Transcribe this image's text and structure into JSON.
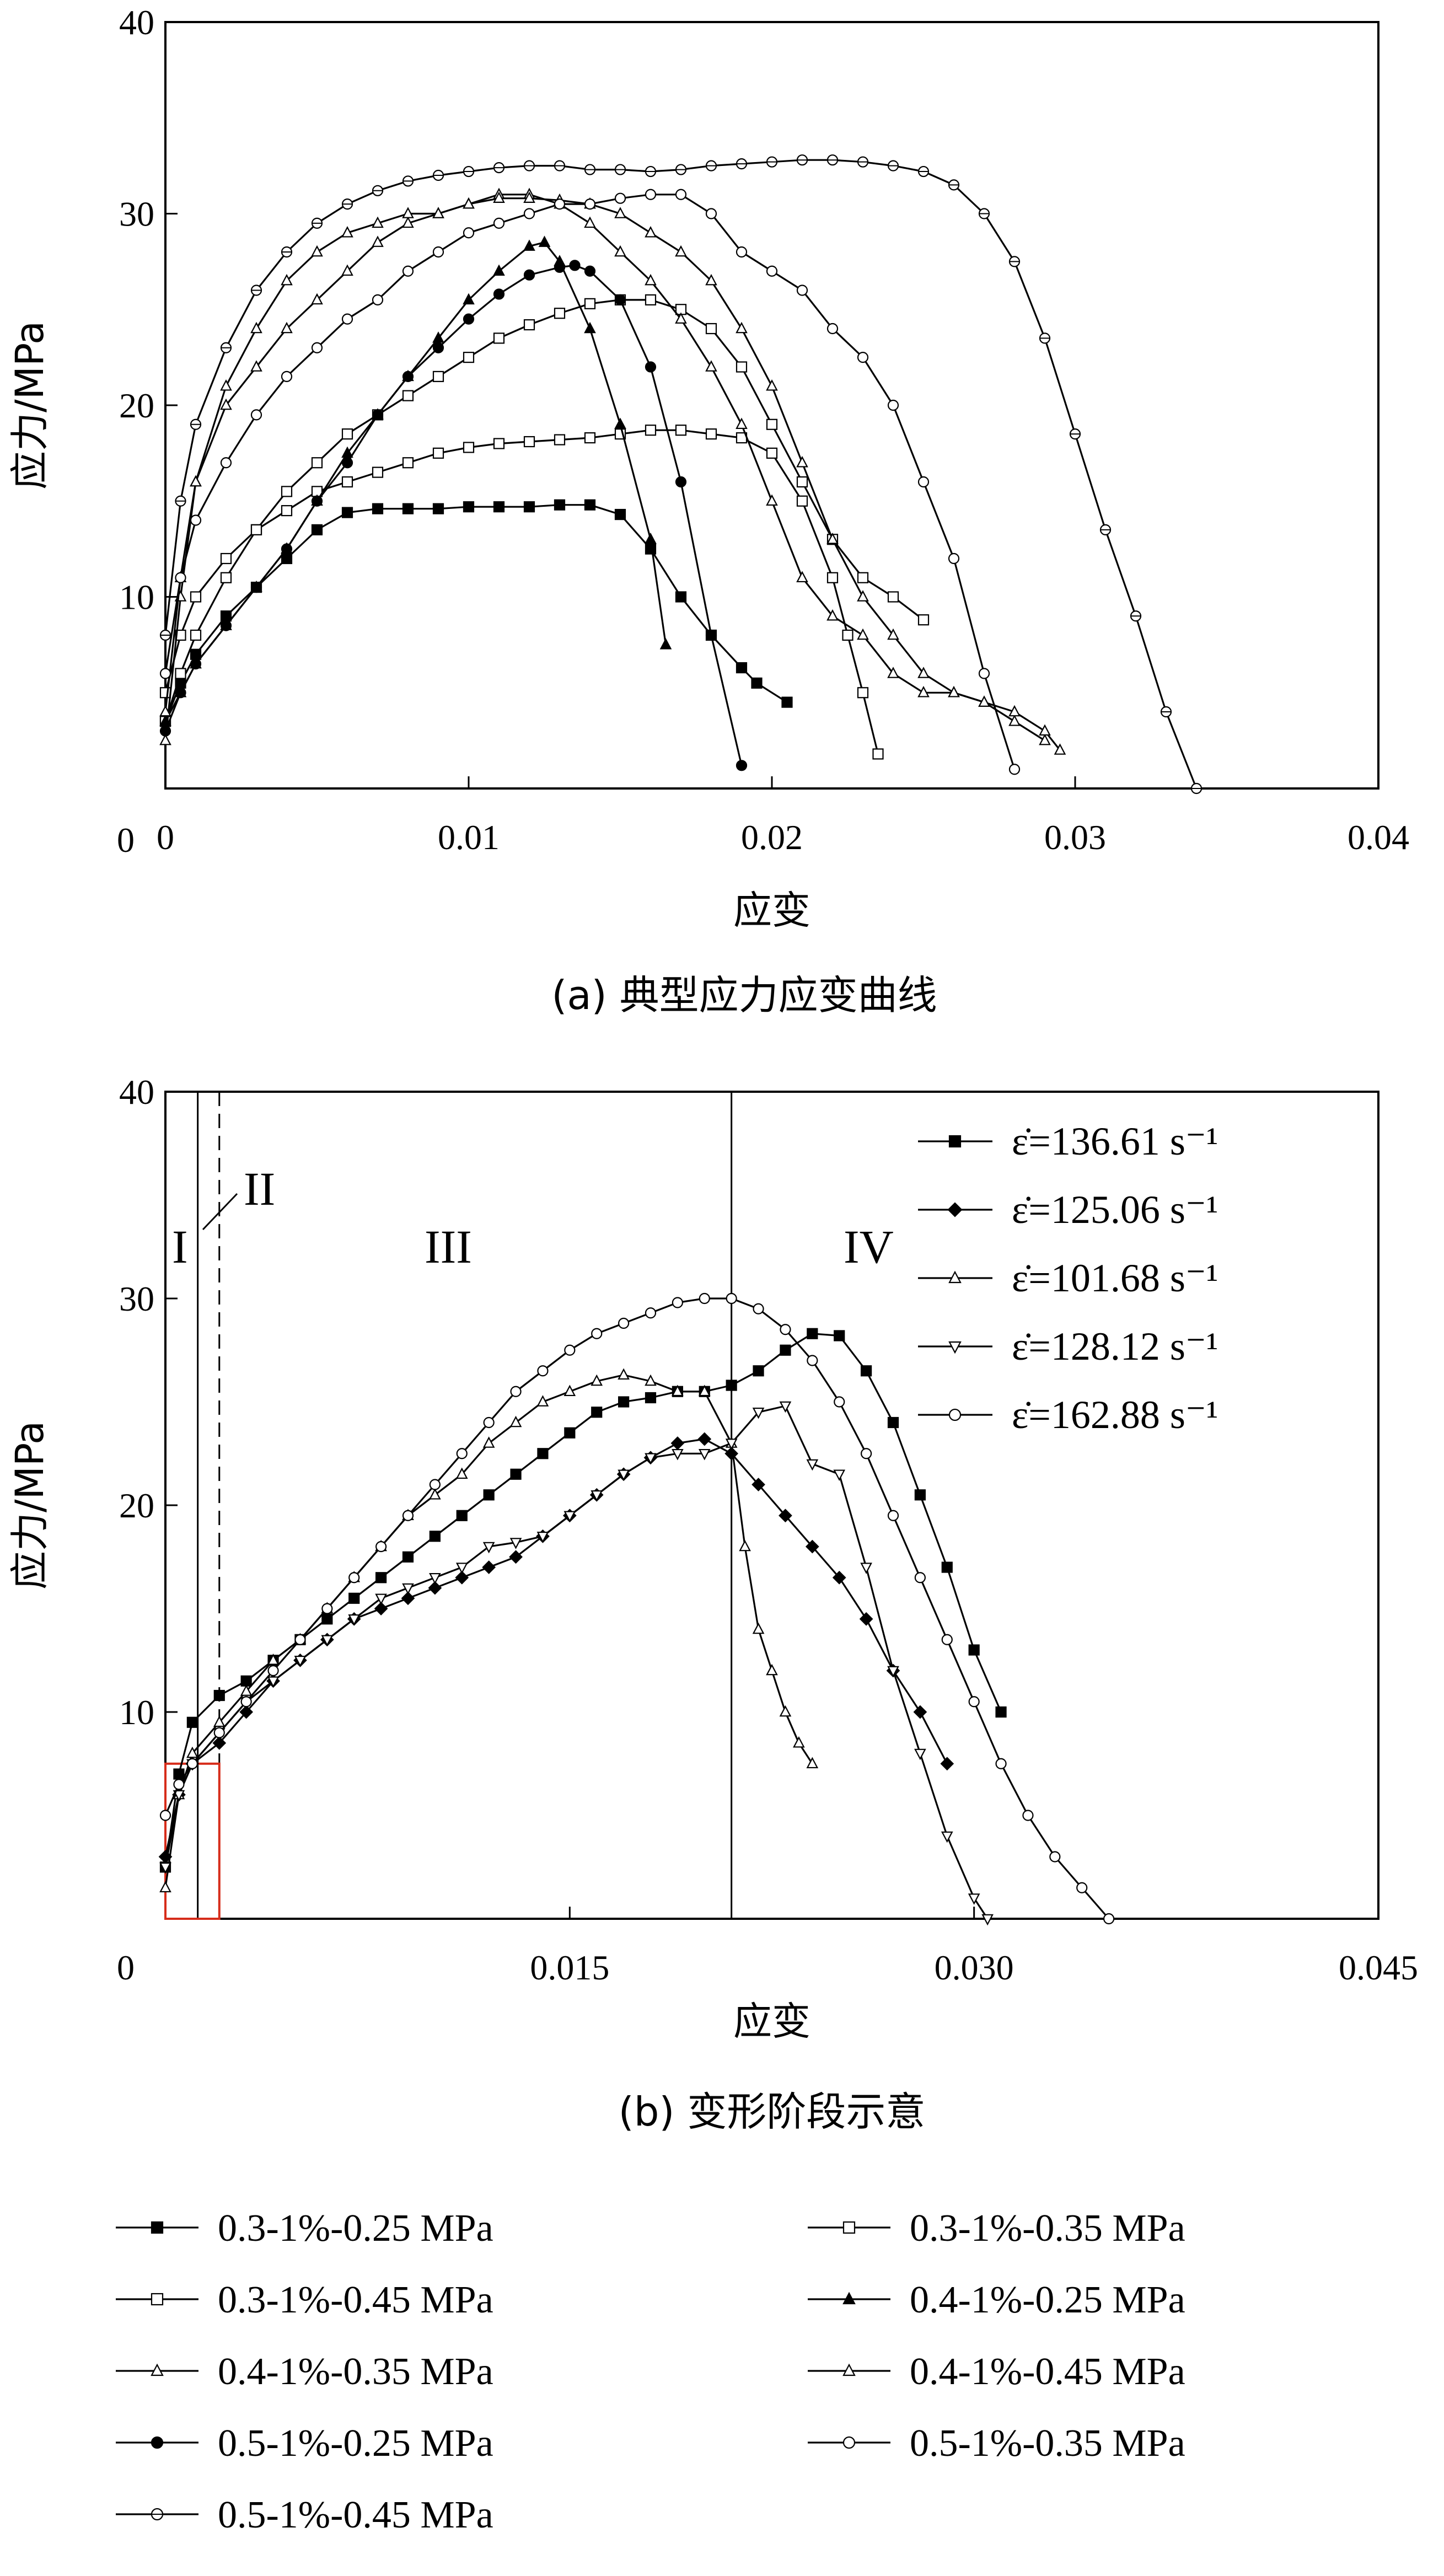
{
  "chart_data": [
    {
      "type": "line",
      "title": "",
      "caption": "(a) 典型应力应变曲线",
      "xlabel": "应变",
      "ylabel": "应力/MPa",
      "xlim": [
        0,
        0.04
      ],
      "ylim": [
        0,
        40
      ],
      "xticks": [
        "0",
        "0.01",
        "0.02",
        "0.03",
        "0.04"
      ],
      "yticks": [
        "10",
        "20",
        "30",
        "40"
      ],
      "grid": false,
      "legend_placement": "below",
      "series": [
        {
          "name": "0.3-1%-0.25 MPa",
          "marker": "square-filled",
          "x": [
            0,
            0.0005,
            0.001,
            0.002,
            0.003,
            0.004,
            0.005,
            0.006,
            0.007,
            0.008,
            0.009,
            0.01,
            0.011,
            0.012,
            0.013,
            0.014,
            0.015,
            0.016,
            0.017,
            0.018,
            0.019,
            0.0195,
            0.0205
          ],
          "y": [
            3.5,
            5.5,
            7,
            9,
            10.5,
            12,
            13.5,
            14.4,
            14.6,
            14.6,
            14.6,
            14.7,
            14.7,
            14.7,
            14.8,
            14.8,
            14.3,
            12.5,
            10,
            8,
            6.3,
            5.5,
            4.5
          ]
        },
        {
          "name": "0.3-1%-0.35 MPa",
          "marker": "square-open",
          "x": [
            0,
            0.0005,
            0.001,
            0.002,
            0.003,
            0.004,
            0.005,
            0.006,
            0.007,
            0.008,
            0.009,
            0.01,
            0.011,
            0.012,
            0.013,
            0.014,
            0.015,
            0.016,
            0.017,
            0.018,
            0.019,
            0.02,
            0.021,
            0.022,
            0.0225,
            0.023,
            0.0235
          ],
          "y": [
            5,
            8,
            10,
            12,
            13.5,
            14.5,
            15.5,
            16,
            16.5,
            17,
            17.5,
            17.8,
            18,
            18.1,
            18.2,
            18.3,
            18.5,
            18.7,
            18.7,
            18.5,
            18.3,
            17.5,
            15,
            11,
            8,
            5,
            1.8
          ]
        },
        {
          "name": "0.3-1%-0.45 MPa",
          "marker": "square-open",
          "x": [
            0,
            0.0005,
            0.001,
            0.002,
            0.003,
            0.004,
            0.005,
            0.006,
            0.007,
            0.008,
            0.009,
            0.01,
            0.011,
            0.012,
            0.013,
            0.014,
            0.015,
            0.016,
            0.017,
            0.018,
            0.019,
            0.02,
            0.021,
            0.022,
            0.023,
            0.024,
            0.025
          ],
          "y": [
            3.5,
            6,
            8,
            11,
            13.5,
            15.5,
            17,
            18.5,
            19.5,
            20.5,
            21.5,
            22.5,
            23.5,
            24.2,
            24.8,
            25.3,
            25.5,
            25.5,
            25,
            24,
            22,
            19,
            16,
            13,
            11,
            10,
            8.8
          ]
        },
        {
          "name": "0.4-1%-0.25 MPa",
          "marker": "triangle-filled",
          "x": [
            0,
            0.0005,
            0.001,
            0.002,
            0.003,
            0.004,
            0.005,
            0.006,
            0.007,
            0.008,
            0.009,
            0.01,
            0.011,
            0.012,
            0.0125,
            0.013,
            0.014,
            0.015,
            0.016,
            0.0165
          ],
          "y": [
            3.5,
            5,
            6.5,
            8.5,
            10.5,
            12.5,
            15,
            17.5,
            19.5,
            21.5,
            23.5,
            25.5,
            27,
            28.3,
            28.5,
            27.5,
            24,
            19,
            13,
            7.5
          ]
        },
        {
          "name": "0.4-1%-0.35 MPa",
          "marker": "triangle-open",
          "x": [
            0,
            0.0005,
            0.001,
            0.002,
            0.003,
            0.004,
            0.005,
            0.006,
            0.007,
            0.008,
            0.009,
            0.01,
            0.011,
            0.012,
            0.013,
            0.014,
            0.015,
            0.016,
            0.017,
            0.018,
            0.019,
            0.02,
            0.021,
            0.022,
            0.023,
            0.024,
            0.025,
            0.026,
            0.027,
            0.028,
            0.029
          ],
          "y": [
            2.5,
            10,
            16,
            20,
            22,
            24,
            25.5,
            27,
            28.5,
            29.5,
            30,
            30.5,
            31,
            31,
            30.5,
            29.5,
            28,
            26.5,
            24.5,
            22,
            19,
            15,
            11,
            9,
            8,
            6,
            5,
            5,
            4.5,
            3.5,
            2.5
          ]
        },
        {
          "name": "0.4-1%-0.45 MPa",
          "marker": "triangle-open",
          "x": [
            0,
            0.0005,
            0.001,
            0.002,
            0.003,
            0.004,
            0.005,
            0.006,
            0.007,
            0.008,
            0.009,
            0.01,
            0.011,
            0.012,
            0.013,
            0.014,
            0.015,
            0.016,
            0.017,
            0.018,
            0.019,
            0.02,
            0.021,
            0.022,
            0.023,
            0.024,
            0.025,
            0.026,
            0.027,
            0.028,
            0.029,
            0.0295
          ],
          "y": [
            4,
            11,
            16,
            21,
            24,
            26.5,
            28,
            29,
            29.5,
            30,
            30,
            30.5,
            30.8,
            30.8,
            30.7,
            30.5,
            30,
            29,
            28,
            26.5,
            24,
            21,
            17,
            13,
            10,
            8,
            6,
            5,
            4.5,
            4,
            3,
            2
          ]
        },
        {
          "name": "0.5-1%-0.25 MPa",
          "marker": "circle-filled",
          "x": [
            0,
            0.0005,
            0.001,
            0.002,
            0.003,
            0.004,
            0.005,
            0.006,
            0.007,
            0.008,
            0.009,
            0.01,
            0.011,
            0.012,
            0.013,
            0.0135,
            0.014,
            0.015,
            0.016,
            0.017,
            0.018,
            0.019
          ],
          "y": [
            3,
            5,
            6.5,
            8.5,
            10.5,
            12.5,
            15,
            17,
            19.5,
            21.5,
            23,
            24.5,
            25.8,
            26.8,
            27.2,
            27.3,
            27,
            25.5,
            22,
            16,
            8,
            1.2
          ]
        },
        {
          "name": "0.5-1%-0.35 MPa",
          "marker": "circle-open",
          "x": [
            0,
            0.0005,
            0.001,
            0.002,
            0.003,
            0.004,
            0.005,
            0.006,
            0.007,
            0.008,
            0.009,
            0.01,
            0.011,
            0.012,
            0.013,
            0.014,
            0.015,
            0.016,
            0.017,
            0.018,
            0.019,
            0.02,
            0.021,
            0.022,
            0.023,
            0.024,
            0.025,
            0.026,
            0.027,
            0.028
          ],
          "y": [
            6,
            11,
            14,
            17,
            19.5,
            21.5,
            23,
            24.5,
            25.5,
            27,
            28,
            29,
            29.5,
            30,
            30.5,
            30.5,
            30.8,
            31,
            31,
            30,
            28,
            27,
            26,
            24,
            22.5,
            20,
            16,
            12,
            6,
            1
          ]
        },
        {
          "name": "0.5-1%-0.45 MPa",
          "marker": "circle-dot",
          "x": [
            0,
            0.0005,
            0.001,
            0.002,
            0.003,
            0.004,
            0.005,
            0.006,
            0.007,
            0.008,
            0.009,
            0.01,
            0.011,
            0.012,
            0.013,
            0.014,
            0.015,
            0.016,
            0.017,
            0.018,
            0.019,
            0.02,
            0.021,
            0.022,
            0.023,
            0.024,
            0.025,
            0.026,
            0.027,
            0.028,
            0.029,
            0.03,
            0.031,
            0.032,
            0.033,
            0.034
          ],
          "y": [
            8,
            15,
            19,
            23,
            26,
            28,
            29.5,
            30.5,
            31.2,
            31.7,
            32,
            32.2,
            32.4,
            32.5,
            32.5,
            32.3,
            32.3,
            32.2,
            32.3,
            32.5,
            32.6,
            32.7,
            32.8,
            32.8,
            32.7,
            32.5,
            32.2,
            31.5,
            30,
            27.5,
            23.5,
            18.5,
            13.5,
            9,
            4,
            0
          ]
        }
      ]
    },
    {
      "type": "line",
      "title": "",
      "caption": "(b) 变形阶段示意",
      "xlabel": "应变",
      "ylabel": "应力/MPa",
      "xlim": [
        0,
        0.045
      ],
      "ylim": [
        0,
        40
      ],
      "xticks": [
        "0.015",
        "0.030",
        "0.045"
      ],
      "yticks": [
        "10",
        "20",
        "30",
        "40"
      ],
      "origin_label": "0",
      "grid": false,
      "legend_placement": "top-right",
      "stages": [
        "I",
        "II",
        "III",
        "IV"
      ],
      "stage_boundaries": [
        0.0012,
        0.002,
        0.021
      ],
      "highlight_box": {
        "x": [
          0,
          0.002
        ],
        "y": [
          0,
          7.5
        ],
        "color": "#d62c1a"
      },
      "series": [
        {
          "name": "ε̇=136.61 s⁻¹",
          "marker": "square-filled",
          "x": [
            0,
            0.0005,
            0.001,
            0.002,
            0.003,
            0.004,
            0.005,
            0.006,
            0.007,
            0.008,
            0.009,
            0.01,
            0.011,
            0.012,
            0.013,
            0.014,
            0.015,
            0.016,
            0.017,
            0.018,
            0.019,
            0.02,
            0.021,
            0.022,
            0.023,
            0.024,
            0.025,
            0.026,
            0.027,
            0.028,
            0.029,
            0.03,
            0.031
          ],
          "y": [
            2.5,
            7,
            9.5,
            10.8,
            11.5,
            12.5,
            13.5,
            14.5,
            15.5,
            16.5,
            17.5,
            18.5,
            19.5,
            20.5,
            21.5,
            22.5,
            23.5,
            24.5,
            25,
            25.2,
            25.5,
            25.5,
            25.8,
            26.5,
            27.5,
            28.3,
            28.2,
            26.5,
            24,
            20.5,
            17,
            13,
            10
          ]
        },
        {
          "name": "ε̇=125.06 s⁻¹",
          "marker": "diamond-filled",
          "x": [
            0,
            0.0005,
            0.001,
            0.002,
            0.003,
            0.004,
            0.005,
            0.006,
            0.007,
            0.008,
            0.009,
            0.01,
            0.011,
            0.012,
            0.013,
            0.014,
            0.015,
            0.016,
            0.017,
            0.018,
            0.019,
            0.02,
            0.021,
            0.022,
            0.023,
            0.024,
            0.025,
            0.026,
            0.027,
            0.028,
            0.029
          ],
          "y": [
            3,
            6,
            7.5,
            8.5,
            10,
            11.5,
            12.5,
            13.5,
            14.5,
            15,
            15.5,
            16,
            16.5,
            17,
            17.5,
            18.5,
            19.5,
            20.5,
            21.5,
            22.3,
            23,
            23.2,
            22.5,
            21,
            19.5,
            18,
            16.5,
            14.5,
            12,
            10,
            7.5
          ]
        },
        {
          "name": "ε̇=101.68 s⁻¹",
          "marker": "triangle-open",
          "x": [
            0,
            0.0005,
            0.001,
            0.002,
            0.003,
            0.004,
            0.005,
            0.006,
            0.007,
            0.008,
            0.009,
            0.01,
            0.011,
            0.012,
            0.013,
            0.014,
            0.015,
            0.016,
            0.017,
            0.018,
            0.019,
            0.02,
            0.021,
            0.0215,
            0.022,
            0.0225,
            0.023,
            0.0235,
            0.024
          ],
          "y": [
            1.5,
            6,
            8,
            9.5,
            11,
            12.5,
            13.5,
            15,
            16.5,
            18,
            19.5,
            20.5,
            21.5,
            23,
            24,
            25,
            25.5,
            26,
            26.3,
            26,
            25.5,
            25.5,
            23,
            18,
            14,
            12,
            10,
            8.5,
            7.5
          ]
        },
        {
          "name": "ε̇=128.12 s⁻¹",
          "marker": "triangle-down-open",
          "x": [
            0,
            0.0005,
            0.001,
            0.002,
            0.003,
            0.004,
            0.005,
            0.006,
            0.007,
            0.008,
            0.009,
            0.01,
            0.011,
            0.012,
            0.013,
            0.014,
            0.015,
            0.016,
            0.017,
            0.018,
            0.019,
            0.02,
            0.021,
            0.022,
            0.023,
            0.024,
            0.025,
            0.026,
            0.027,
            0.028,
            0.029,
            0.03,
            0.0305
          ],
          "y": [
            2.5,
            6,
            7.5,
            9,
            10.5,
            11.5,
            12.5,
            13.5,
            14.5,
            15.5,
            16,
            16.5,
            17,
            18,
            18.2,
            18.5,
            19.5,
            20.5,
            21.5,
            22.3,
            22.5,
            22.5,
            23,
            24.5,
            24.8,
            22,
            21.5,
            17,
            12,
            8,
            4,
            1,
            0
          ]
        },
        {
          "name": "ε̇=162.88 s⁻¹",
          "marker": "circle-open",
          "x": [
            0,
            0.0005,
            0.001,
            0.002,
            0.003,
            0.004,
            0.005,
            0.006,
            0.007,
            0.008,
            0.009,
            0.01,
            0.011,
            0.012,
            0.013,
            0.014,
            0.015,
            0.016,
            0.017,
            0.018,
            0.019,
            0.02,
            0.021,
            0.022,
            0.023,
            0.024,
            0.025,
            0.026,
            0.027,
            0.028,
            0.029,
            0.03,
            0.031,
            0.032,
            0.033,
            0.034,
            0.035
          ],
          "y": [
            5,
            6.5,
            7.5,
            9,
            10.5,
            12,
            13.5,
            15,
            16.5,
            18,
            19.5,
            21,
            22.5,
            24,
            25.5,
            26.5,
            27.5,
            28.3,
            28.8,
            29.3,
            29.8,
            30,
            30,
            29.5,
            28.5,
            27,
            25,
            22.5,
            19.5,
            16.5,
            13.5,
            10.5,
            7.5,
            5,
            3,
            1.5,
            0
          ]
        }
      ]
    }
  ],
  "legend_bottom": [
    {
      "label": "0.3-1%-0.25 MPa",
      "marker": "square-filled"
    },
    {
      "label": "0.3-1%-0.35 MPa",
      "marker": "square-open"
    },
    {
      "label": "0.3-1%-0.45 MPa",
      "marker": "square-open"
    },
    {
      "label": "0.4-1%-0.25 MPa",
      "marker": "triangle-filled"
    },
    {
      "label": "0.4-1%-0.35 MPa",
      "marker": "triangle-open"
    },
    {
      "label": "0.4-1%-0.45 MPa",
      "marker": "triangle-open"
    },
    {
      "label": "0.5-1%-0.25 MPa",
      "marker": "circle-filled"
    },
    {
      "label": "0.5-1%-0.35 MPa",
      "marker": "circle-open"
    },
    {
      "label": "0.5-1%-0.45 MPa",
      "marker": "circle-dot"
    }
  ]
}
